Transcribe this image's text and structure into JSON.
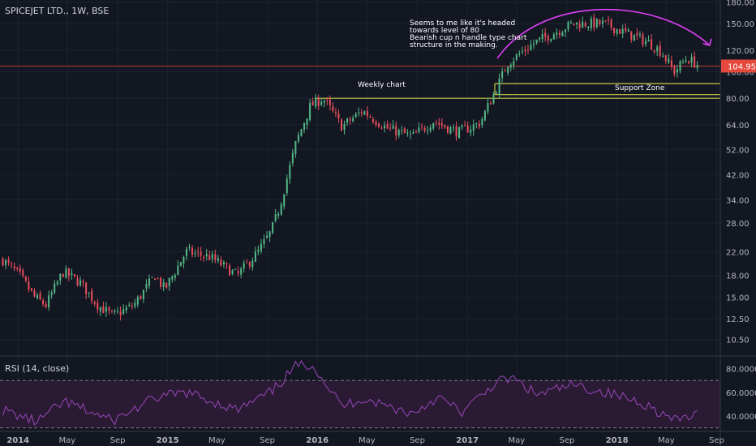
{
  "header": {
    "symbol_label": "SPICEJET LTD., 1W, BSE"
  },
  "annotations": {
    "note_lines": [
      "Seems to me like it's headed",
      "towards level of 80",
      "Bearish cup n handle type chart",
      "structure in the making."
    ],
    "weekly": "Weekly chart",
    "support": "Support Zone"
  },
  "colors": {
    "background": "#131722",
    "up": "#53b987",
    "down": "#eb4d5c",
    "rsi_line": "#8e44ad",
    "rsi_band": "#2a1a33",
    "cup_arc": "#e040fb",
    "support_line": "#c8c84a",
    "price_line": "#e5483c",
    "grid": "#1e2230",
    "axis_text": "#b2b5be"
  },
  "chart_data": [
    {
      "type": "candlestick",
      "title": "SPICEJET LTD., 1W, BSE",
      "y_scale": "log",
      "y_ticks": [
        10.5,
        12.5,
        15.0,
        18.0,
        22.0,
        28.0,
        34.0,
        42.0,
        52.0,
        64.0,
        80.0,
        100.0,
        120.0,
        150.0,
        180.0
      ],
      "y_range": [
        9.2,
        183
      ],
      "x_range": [
        "2013-11-18",
        "2018-09-10"
      ],
      "x_ticks": [
        {
          "date": "2014-01-01",
          "label": "2014"
        },
        {
          "date": "2014-05-01",
          "label": "May"
        },
        {
          "date": "2014-09-01",
          "label": "Sep"
        },
        {
          "date": "2015-01-01",
          "label": "2015"
        },
        {
          "date": "2015-05-01",
          "label": "May"
        },
        {
          "date": "2015-09-01",
          "label": "Sep"
        },
        {
          "date": "2016-01-01",
          "label": "2016"
        },
        {
          "date": "2016-05-01",
          "label": "May"
        },
        {
          "date": "2016-09-01",
          "label": "Sep"
        },
        {
          "date": "2017-01-01",
          "label": "2017"
        },
        {
          "date": "2017-05-01",
          "label": "May"
        },
        {
          "date": "2017-09-01",
          "label": "Sep"
        },
        {
          "date": "2018-01-01",
          "label": "2018"
        },
        {
          "date": "2018-05-01",
          "label": "May"
        },
        {
          "date": "2018-09-01",
          "label": "Sep"
        }
      ],
      "close_path": [
        {
          "date": "2013-11-25",
          "close": 20.5
        },
        {
          "date": "2014-01-05",
          "close": 18.0
        },
        {
          "date": "2014-02-10",
          "close": 15.0
        },
        {
          "date": "2014-03-10",
          "close": 14.0
        },
        {
          "date": "2014-04-20",
          "close": 18.5
        },
        {
          "date": "2014-06-01",
          "close": 17.0
        },
        {
          "date": "2014-07-15",
          "close": 14.0
        },
        {
          "date": "2014-08-20",
          "close": 12.8
        },
        {
          "date": "2014-10-10",
          "close": 14.0
        },
        {
          "date": "2014-12-01",
          "close": 18.0
        },
        {
          "date": "2014-12-25",
          "close": 16.0
        },
        {
          "date": "2015-02-15",
          "close": 22.0
        },
        {
          "date": "2015-04-15",
          "close": 21.0
        },
        {
          "date": "2015-06-20",
          "close": 18.0
        },
        {
          "date": "2015-08-10",
          "close": 22.0
        },
        {
          "date": "2015-09-10",
          "close": 26.0
        },
        {
          "date": "2015-10-01",
          "close": 32.0
        },
        {
          "date": "2015-11-10",
          "close": 55.0
        },
        {
          "date": "2015-12-15",
          "close": 75.0
        },
        {
          "date": "2016-01-15",
          "close": 80.0
        },
        {
          "date": "2016-03-01",
          "close": 63.0
        },
        {
          "date": "2016-04-20",
          "close": 72.0
        },
        {
          "date": "2016-06-20",
          "close": 62.0
        },
        {
          "date": "2016-08-20",
          "close": 58.0
        },
        {
          "date": "2016-10-10",
          "close": 66.0
        },
        {
          "date": "2016-12-10",
          "close": 60.0
        },
        {
          "date": "2017-02-01",
          "close": 65.0
        },
        {
          "date": "2017-03-10",
          "close": 85.0
        },
        {
          "date": "2017-04-10",
          "close": 108.0
        },
        {
          "date": "2017-06-15",
          "close": 128.0
        },
        {
          "date": "2017-09-15",
          "close": 150.0
        },
        {
          "date": "2017-12-01",
          "close": 150.0
        },
        {
          "date": "2018-01-15",
          "close": 140.0
        },
        {
          "date": "2018-03-20",
          "close": 128.0
        },
        {
          "date": "2018-04-20",
          "close": 118.0
        },
        {
          "date": "2018-05-20",
          "close": 100.0
        },
        {
          "date": "2018-06-20",
          "close": 112.0
        },
        {
          "date": "2018-07-22",
          "close": 104.95
        }
      ],
      "last_price": 104.95,
      "horizontal_lines": [
        {
          "price": 104.95,
          "role": "last price"
        },
        {
          "price": 90.5,
          "role": "support top"
        },
        {
          "price": 82.5,
          "role": "support bottom"
        },
        {
          "price": 80.0,
          "role": "support lower"
        }
      ],
      "grid": true
    },
    {
      "type": "line",
      "title": "RSI (14, close)",
      "y_ticks": [
        40.0,
        60.0,
        80.0
      ],
      "y_range": [
        27,
        90
      ],
      "bands": {
        "upper": 70,
        "lower": 30
      },
      "path": [
        {
          "date": "2013-11-25",
          "value": 45
        },
        {
          "date": "2014-02-15",
          "value": 35
        },
        {
          "date": "2014-04-25",
          "value": 52
        },
        {
          "date": "2014-08-20",
          "value": 36
        },
        {
          "date": "2014-12-01",
          "value": 55
        },
        {
          "date": "2015-02-15",
          "value": 60
        },
        {
          "date": "2015-06-20",
          "value": 45
        },
        {
          "date": "2015-09-10",
          "value": 60
        },
        {
          "date": "2015-11-10",
          "value": 82
        },
        {
          "date": "2015-12-20",
          "value": 84
        },
        {
          "date": "2016-03-01",
          "value": 48
        },
        {
          "date": "2016-04-20",
          "value": 55
        },
        {
          "date": "2016-08-20",
          "value": 42
        },
        {
          "date": "2016-10-20",
          "value": 56
        },
        {
          "date": "2016-12-20",
          "value": 43
        },
        {
          "date": "2017-03-10",
          "value": 68
        },
        {
          "date": "2017-04-20",
          "value": 72
        },
        {
          "date": "2017-06-20",
          "value": 58
        },
        {
          "date": "2017-09-15",
          "value": 66
        },
        {
          "date": "2017-12-01",
          "value": 60
        },
        {
          "date": "2018-03-01",
          "value": 52
        },
        {
          "date": "2018-05-20",
          "value": 36
        },
        {
          "date": "2018-07-22",
          "value": 42
        }
      ]
    }
  ]
}
